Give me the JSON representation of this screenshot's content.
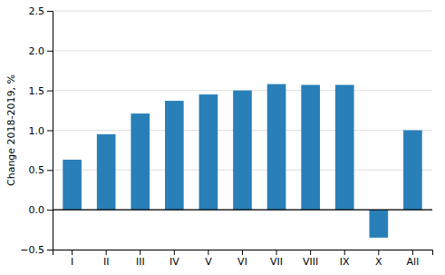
{
  "chart_data": {
    "type": "bar",
    "categories": [
      "I",
      "II",
      "III",
      "IV",
      "V",
      "VI",
      "VII",
      "VIII",
      "IX",
      "X",
      "All"
    ],
    "values": [
      0.63,
      0.95,
      1.21,
      1.37,
      1.45,
      1.5,
      1.58,
      1.57,
      1.57,
      -0.35,
      1.0
    ],
    "color": "#2980b9",
    "ylabel": "Change 2018-2019, %",
    "ylim": [
      -0.5,
      2.5
    ],
    "yticks": [
      {
        "value": -0.5,
        "label": "−0.5"
      },
      {
        "value": 0.0,
        "label": "0.0"
      },
      0.5,
      {
        "value": 1.0,
        "label": "1.0"
      },
      1.5,
      {
        "value": 2.0,
        "label": "2.0"
      },
      2.5
    ],
    "grid": true
  }
}
